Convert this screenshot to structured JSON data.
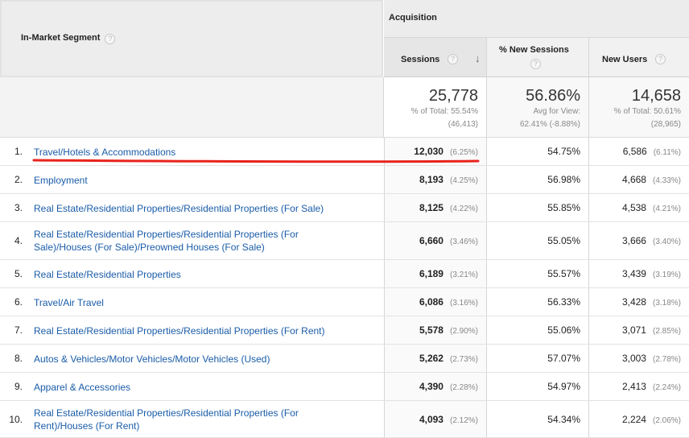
{
  "header": {
    "segment_label": "In-Market Segment",
    "group_label": "Acquisition",
    "help_glyph": "?",
    "sort_glyph": "↓",
    "columns": {
      "sessions": "Sessions",
      "new_sessions": "% New Sessions",
      "new_users": "New Users"
    }
  },
  "totals": {
    "sessions": {
      "value": "25,778",
      "line1": "% of Total: 55.54%",
      "line2": "(46,413)"
    },
    "new_sessions": {
      "value": "56.86%",
      "line1": "Avg for View:",
      "line2": "62.41% (-8.88%)"
    },
    "new_users": {
      "value": "14,658",
      "line1": "% of Total: 50.61%",
      "line2": "(28,965)"
    }
  },
  "rows": [
    {
      "num": "1.",
      "segment": "Travel/Hotels & Accommodations",
      "sessions": "12,030",
      "sessions_pct": "(6.25%)",
      "new_sessions": "54.75%",
      "new_users": "6,586",
      "new_users_pct": "(6.11%)"
    },
    {
      "num": "2.",
      "segment": "Employment",
      "sessions": "8,193",
      "sessions_pct": "(4.25%)",
      "new_sessions": "56.98%",
      "new_users": "4,668",
      "new_users_pct": "(4.33%)"
    },
    {
      "num": "3.",
      "segment": "Real Estate/Residential Properties/Residential Properties (For Sale)",
      "sessions": "8,125",
      "sessions_pct": "(4.22%)",
      "new_sessions": "55.85%",
      "new_users": "4,538",
      "new_users_pct": "(4.21%)"
    },
    {
      "num": "4.",
      "segment": "Real Estate/Residential Properties/Residential Properties (For Sale)/Houses (For Sale)/Preowned Houses (For Sale)",
      "sessions": "6,660",
      "sessions_pct": "(3.46%)",
      "new_sessions": "55.05%",
      "new_users": "3,666",
      "new_users_pct": "(3.40%)"
    },
    {
      "num": "5.",
      "segment": "Real Estate/Residential Properties",
      "sessions": "6,189",
      "sessions_pct": "(3.21%)",
      "new_sessions": "55.57%",
      "new_users": "3,439",
      "new_users_pct": "(3.19%)"
    },
    {
      "num": "6.",
      "segment": "Travel/Air Travel",
      "sessions": "6,086",
      "sessions_pct": "(3.16%)",
      "new_sessions": "56.33%",
      "new_users": "3,428",
      "new_users_pct": "(3.18%)"
    },
    {
      "num": "7.",
      "segment": "Real Estate/Residential Properties/Residential Properties (For Rent)",
      "sessions": "5,578",
      "sessions_pct": "(2.90%)",
      "new_sessions": "55.06%",
      "new_users": "3,071",
      "new_users_pct": "(2.85%)"
    },
    {
      "num": "8.",
      "segment": "Autos & Vehicles/Motor Vehicles/Motor Vehicles (Used)",
      "sessions": "5,262",
      "sessions_pct": "(2.73%)",
      "new_sessions": "57.07%",
      "new_users": "3,003",
      "new_users_pct": "(2.78%)"
    },
    {
      "num": "9.",
      "segment": "Apparel & Accessories",
      "sessions": "4,390",
      "sessions_pct": "(2.28%)",
      "new_sessions": "54.97%",
      "new_users": "2,413",
      "new_users_pct": "(2.24%)"
    },
    {
      "num": "10.",
      "segment": "Real Estate/Residential Properties/Residential Properties (For Rent)/Houses (For Rent)",
      "sessions": "4,093",
      "sessions_pct": "(2.12%)",
      "new_sessions": "54.34%",
      "new_users": "2,224",
      "new_users_pct": "(2.06%)"
    }
  ],
  "colors": {
    "link": "#1a5ca8",
    "annotation": "#e8231c"
  }
}
